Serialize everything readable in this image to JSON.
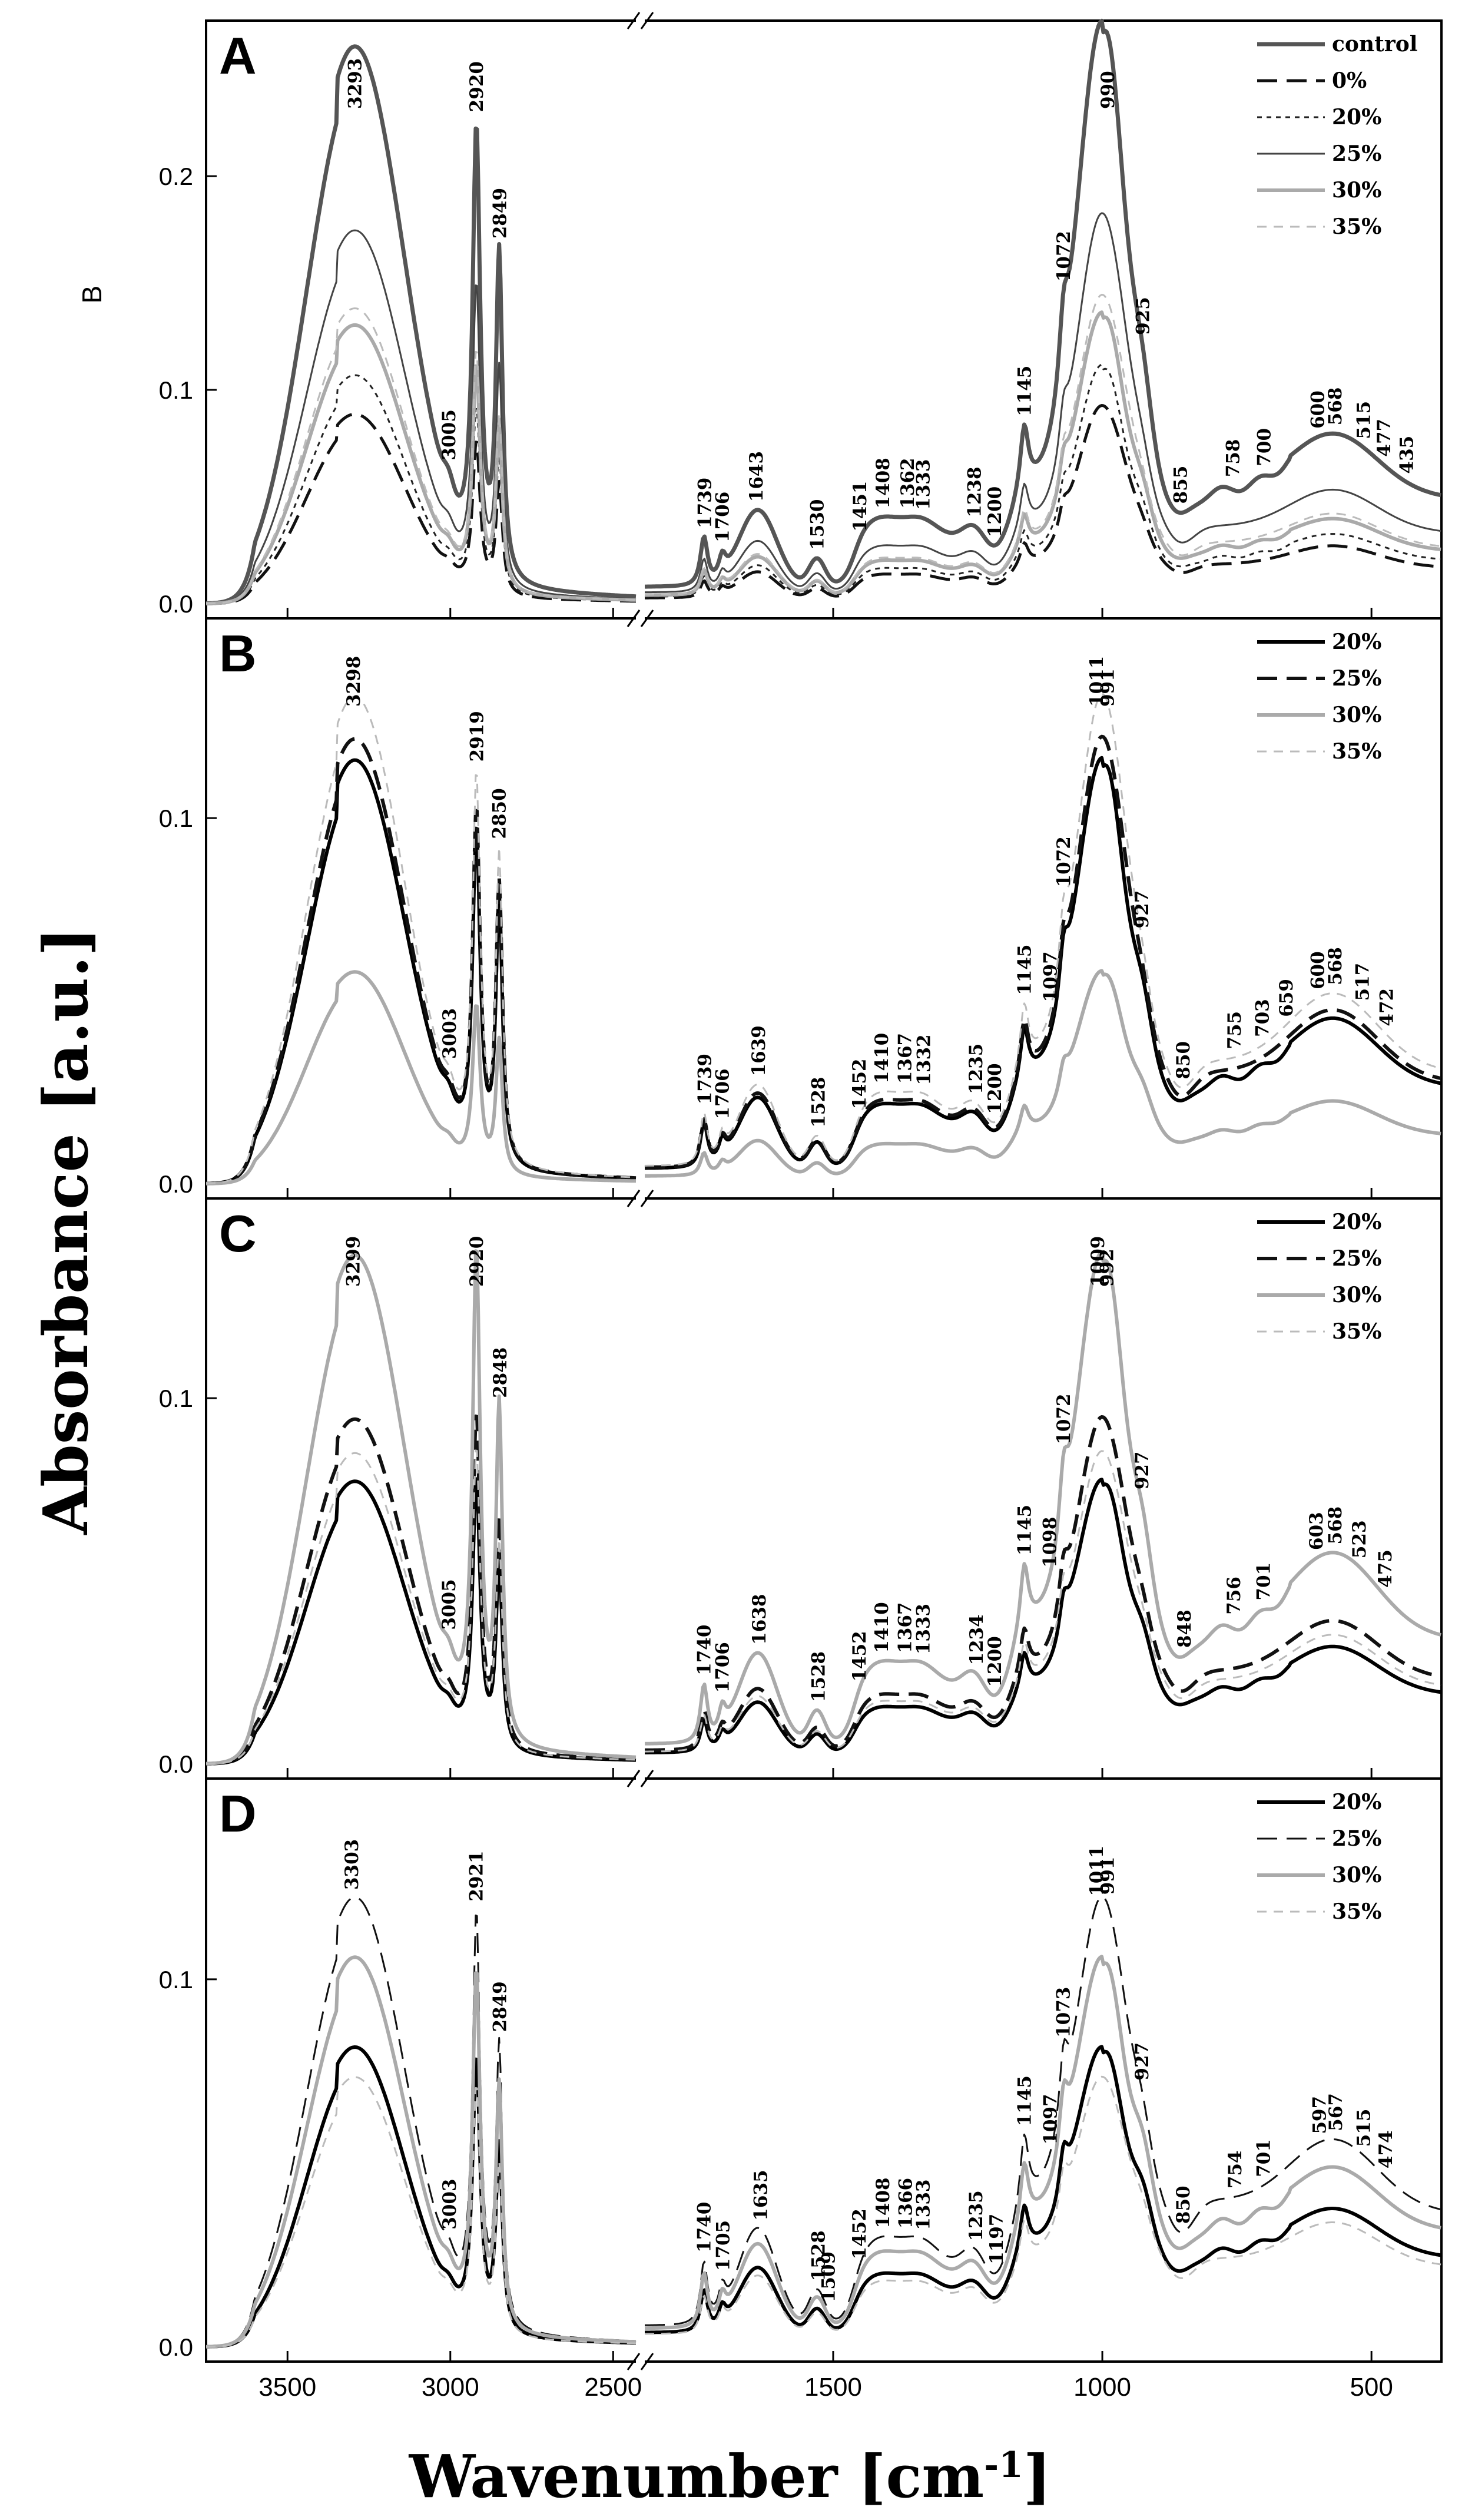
{
  "chart_data": {
    "type": "line",
    "title": "",
    "ylabel": "Absorbance [a.u.]",
    "xlabel_base": "Wavenumber [cm",
    "xlabel_sup": "-1",
    "xlabel_end": "]",
    "x_axis": {
      "direction": "decreasing",
      "break": true,
      "segments": [
        {
          "xlim": [
            3750,
            2430
          ],
          "ticks": [
            3500,
            3000,
            2500
          ]
        },
        {
          "xlim": [
            1850,
            370
          ],
          "ticks": [
            1500,
            1000,
            500
          ]
        }
      ]
    },
    "panels": [
      {
        "label": "A",
        "corner_text": "B",
        "ylim": [
          0,
          0.27
        ],
        "yticks": [
          0.0,
          0.1,
          0.2
        ],
        "ytick_labels": [
          "0.0",
          "0.1",
          "0.2"
        ],
        "series": [
          {
            "name": "control",
            "color": "#555555",
            "dash": "solid",
            "width": 7,
            "scale": 1.0
          },
          {
            "name": "0%",
            "color": "#111111",
            "dash": "long",
            "width": 5,
            "scale": 0.34
          },
          {
            "name": "20%",
            "color": "#222222",
            "dash": "dot",
            "width": 3,
            "scale": 0.41
          },
          {
            "name": "25%",
            "color": "#444444",
            "dash": "solid",
            "width": 3,
            "scale": 0.67
          },
          {
            "name": "30%",
            "color": "#aaaaaa",
            "dash": "solid",
            "width": 6,
            "scale": 0.5
          },
          {
            "name": "35%",
            "color": "#bbbbbb",
            "dash": "short",
            "width": 3,
            "scale": 0.53
          }
        ],
        "ref": {
          "oh": 0.243,
          "ch1": 0.202,
          "ch2": 0.15,
          "fp": 0.255,
          "base": 0.065,
          "broad": 0.085,
          "low": 0.08
        },
        "peaks": [
          "3293",
          "2920",
          "3005",
          "2849",
          "1739",
          "1706",
          "1643",
          "1530",
          "1451",
          "1408",
          "1362",
          "1333",
          "1238",
          "1200",
          "1145",
          "1072",
          "990",
          "925",
          "855",
          "758",
          "700",
          "600",
          "568",
          "515",
          "477",
          "435"
        ]
      },
      {
        "label": "B",
        "corner_text": "",
        "ylim": [
          0,
          0.153
        ],
        "yticks": [
          0.0,
          0.1
        ],
        "ytick_labels": [
          "0.0",
          "0.1"
        ],
        "series": [
          {
            "name": "20%",
            "color": "#000000",
            "dash": "solid",
            "width": 6,
            "scale": 1.0
          },
          {
            "name": "25%",
            "color": "#111111",
            "dash": "long",
            "width": 6,
            "scale": 1.05
          },
          {
            "name": "30%",
            "color": "#aaaaaa",
            "dash": "solid",
            "width": 6,
            "scale": 0.5
          },
          {
            "name": "35%",
            "color": "#bbbbbb",
            "dash": "short",
            "width": 3,
            "scale": 1.15
          }
        ],
        "ref": {
          "oh": 0.108,
          "ch1": 0.088,
          "ch2": 0.072,
          "fp": 0.107,
          "base": 0.035,
          "broad": 0.04,
          "low": 0.05
        },
        "peaks": [
          "3298",
          "2919",
          "3003",
          "2850",
          "1739",
          "1706",
          "1639",
          "1528",
          "1452",
          "1410",
          "1367",
          "1332",
          "1235",
          "1200",
          "1145",
          "1097",
          "1072",
          "1011",
          "991",
          "927",
          "850",
          "755",
          "703",
          "659",
          "600",
          "568",
          "517",
          "472"
        ]
      },
      {
        "label": "C",
        "corner_text": "",
        "ylim": [
          0,
          0.153
        ],
        "yticks": [
          0.0,
          0.1
        ],
        "ytick_labels": [
          "0.0",
          "0.1"
        ],
        "series": [
          {
            "name": "20%",
            "color": "#000000",
            "dash": "solid",
            "width": 6,
            "scale": 1.0
          },
          {
            "name": "25%",
            "color": "#111111",
            "dash": "long",
            "width": 6,
            "scale": 1.22
          },
          {
            "name": "30%",
            "color": "#aaaaaa",
            "dash": "solid",
            "width": 6,
            "scale": 1.8
          },
          {
            "name": "35%",
            "color": "#bbbbbb",
            "dash": "short",
            "width": 3,
            "scale": 1.1
          }
        ],
        "ref": {
          "oh": 0.072,
          "ch1": 0.072,
          "ch2": 0.05,
          "fp": 0.071,
          "base": 0.025,
          "broad": 0.028,
          "low": 0.035
        },
        "peaks": [
          "3299",
          "2920",
          "3005",
          "2848",
          "1740",
          "1706",
          "1638",
          "1528",
          "1452",
          "1410",
          "1367",
          "1333",
          "1234",
          "1200",
          "1145",
          "1098",
          "1072",
          "1009",
          "992",
          "927",
          "848",
          "756",
          "701",
          "603",
          "568",
          "523",
          "475"
        ]
      },
      {
        "label": "D",
        "corner_text": "",
        "ylim": [
          0,
          0.153
        ],
        "yticks": [
          0.0,
          0.1
        ],
        "ytick_labels": [
          "0.0",
          "0.1"
        ],
        "series": [
          {
            "name": "20%",
            "color": "#000000",
            "dash": "solid",
            "width": 6,
            "scale": 1.0
          },
          {
            "name": "25%",
            "color": "#111111",
            "dash": "long",
            "width": 3,
            "scale": 1.5
          },
          {
            "name": "30%",
            "color": "#aaaaaa",
            "dash": "solid",
            "width": 6,
            "scale": 1.3
          },
          {
            "name": "35%",
            "color": "#bbbbbb",
            "dash": "short",
            "width": 3,
            "scale": 0.9
          }
        ],
        "ref": {
          "oh": 0.076,
          "ch1": 0.072,
          "ch2": 0.05,
          "fp": 0.073,
          "base": 0.032,
          "broad": 0.035,
          "low": 0.035
        },
        "peaks": [
          "3303",
          "2921",
          "3003",
          "2849",
          "1740",
          "1705",
          "1635",
          "1528",
          "1509",
          "1452",
          "1408",
          "1366",
          "1333",
          "1235",
          "1197",
          "1145",
          "1097",
          "1073",
          "1011",
          "991",
          "927",
          "850",
          "754",
          "701",
          "597",
          "567",
          "515",
          "474"
        ]
      }
    ]
  }
}
